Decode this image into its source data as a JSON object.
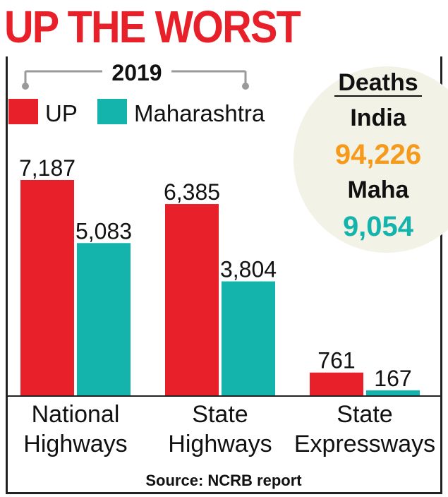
{
  "title": "UP THE WORST",
  "chart_data": {
    "type": "bar",
    "year": "2019",
    "categories": [
      "National Highways",
      "State Highways",
      "State Expressways"
    ],
    "series": [
      {
        "name": "UP",
        "color": "#e8202a",
        "values": [
          7187,
          6385,
          761
        ],
        "labels": [
          "7,187",
          "6,385",
          "761"
        ]
      },
      {
        "name": "Maharashtra",
        "color": "#14b3ac",
        "values": [
          5083,
          3804,
          167
        ],
        "labels": [
          "5,083",
          "3,804",
          "167"
        ]
      }
    ],
    "ylim": [
      0,
      8000
    ],
    "grid": false,
    "legend": "top-left"
  },
  "deaths": {
    "heading": "Deaths",
    "india_label": "India",
    "india_value": "94,226",
    "india_color": "#f59a1b",
    "maha_label": "Maha",
    "maha_value": "9,054",
    "maha_color": "#14b3ac"
  },
  "source": "Source: NCRB report"
}
